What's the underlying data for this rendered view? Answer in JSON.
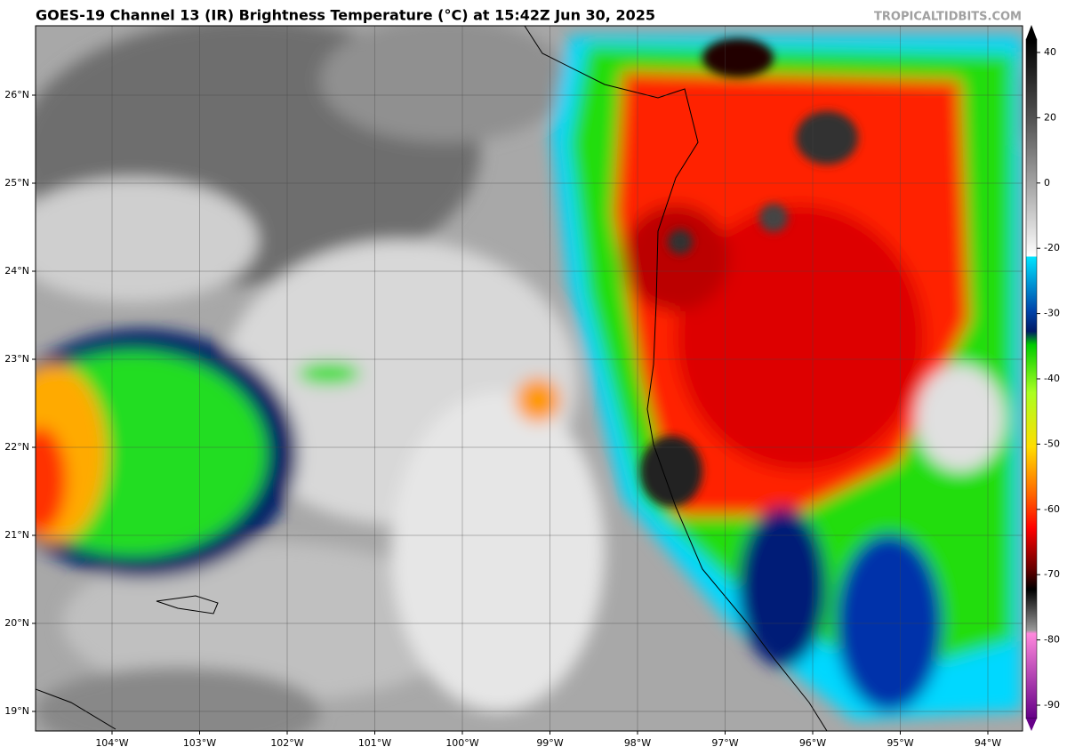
{
  "header": {
    "title": "GOES-19 Channel 13 (IR) Brightness Temperature (°C) at 15:42Z Jun 30, 2025",
    "credit": "TROPICALTIDBITS.COM"
  },
  "map": {
    "lat_labels": [
      "26°N",
      "25°N",
      "24°N",
      "23°N",
      "22°N",
      "21°N",
      "20°N",
      "19°N"
    ],
    "lon_labels": [
      "104°W",
      "103°W",
      "102°W",
      "101°W",
      "100°W",
      "99°W",
      "98°W",
      "97°W",
      "96°W",
      "95°W",
      "94°W"
    ]
  },
  "colorbar": {
    "ticks": [
      40,
      20,
      0,
      -20,
      -30,
      -40,
      -50,
      -60,
      -70,
      -80,
      -90
    ]
  }
}
